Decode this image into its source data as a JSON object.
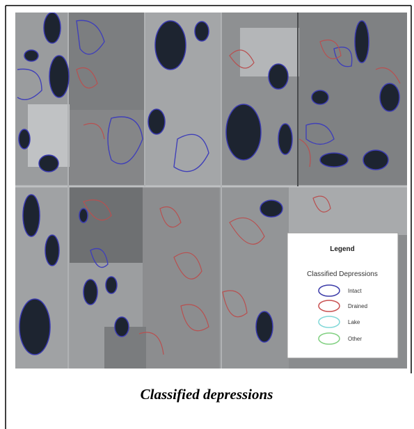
{
  "legend": {
    "title": "Legend",
    "subtitle": "Classified Depressions",
    "items": [
      "Intact",
      "Drained",
      "Lake",
      "Other"
    ]
  },
  "caption": "Classified depressions"
}
